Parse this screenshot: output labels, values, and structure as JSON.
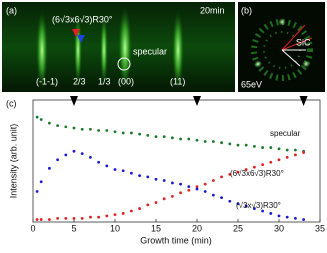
{
  "panel_a": {
    "label": "(a)",
    "time": "20min",
    "reconstruction": "(6√3x6√3)R30°",
    "specular": "specular",
    "streaks": [
      "(-1-1)",
      "2/3",
      "1/3",
      "(00)",
      "(11)"
    ]
  },
  "panel_b": {
    "label": "(b)",
    "substrate": "SiC",
    "energy": "65eV"
  },
  "chart_data": {
    "type": "scatter",
    "panel_label": "(c)",
    "x_label": "Growth time (min)",
    "y_label": "Intensity (arb. unit)",
    "x": [
      0.5,
      1,
      2,
      3,
      4,
      5,
      6,
      7,
      8,
      9,
      10,
      11,
      12,
      13,
      14,
      15,
      16,
      17,
      18,
      19,
      20,
      21,
      22,
      23,
      24,
      25,
      26,
      27,
      28,
      29,
      30,
      31,
      32,
      33
    ],
    "series": [
      {
        "name": "specular",
        "color": "#1a7a2a",
        "values": [
          0.86,
          0.84,
          0.81,
          0.79,
          0.78,
          0.77,
          0.76,
          0.76,
          0.75,
          0.75,
          0.74,
          0.73,
          0.73,
          0.72,
          0.71,
          0.7,
          0.7,
          0.69,
          0.68,
          0.68,
          0.67,
          0.66,
          0.66,
          0.65,
          0.64,
          0.63,
          0.63,
          0.62,
          0.61,
          0.61,
          0.6,
          0.59,
          0.59,
          0.58
        ]
      },
      {
        "name": "(6√3x6√3)R30°",
        "color": "#e02020",
        "values": [
          0.02,
          0.02,
          0.02,
          0.03,
          0.03,
          0.03,
          0.03,
          0.04,
          0.04,
          0.05,
          0.06,
          0.07,
          0.09,
          0.11,
          0.14,
          0.16,
          0.19,
          0.21,
          0.24,
          0.26,
          0.29,
          0.31,
          0.34,
          0.37,
          0.39,
          0.41,
          0.43,
          0.45,
          0.47,
          0.49,
          0.51,
          0.53,
          0.55,
          0.57
        ]
      },
      {
        "name": "(√3x√3)R30°",
        "color": "#1a1ad0",
        "values": [
          0.25,
          0.33,
          0.44,
          0.51,
          0.55,
          0.58,
          0.56,
          0.53,
          0.49,
          0.46,
          0.43,
          0.42,
          0.4,
          0.38,
          0.37,
          0.35,
          0.34,
          0.32,
          0.31,
          0.29,
          0.27,
          0.25,
          0.22,
          0.2,
          0.17,
          0.15,
          0.13,
          0.11,
          0.09,
          0.07,
          0.05,
          0.04,
          0.03,
          0.02
        ]
      }
    ],
    "arrows_x": [
      5,
      20,
      33
    ],
    "xlim": [
      0,
      35
    ],
    "xticks": [
      0,
      5,
      10,
      15,
      20,
      25,
      30,
      35
    ],
    "ylim": [
      0,
      1
    ]
  }
}
